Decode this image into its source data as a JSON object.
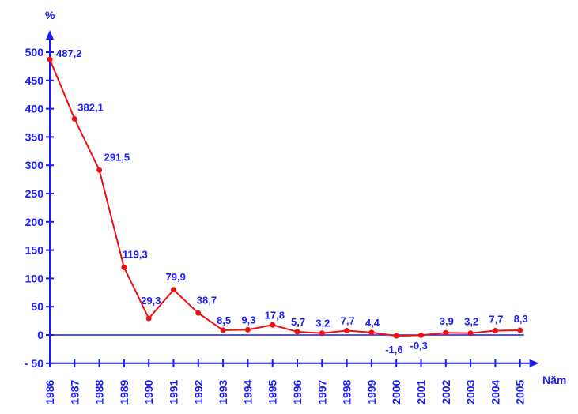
{
  "chart_data": {
    "type": "line",
    "title": "",
    "ylabel": "%",
    "xlabel": "Năm",
    "ylim": [
      -50,
      500
    ],
    "yticks": [
      -50,
      0,
      50,
      100,
      150,
      200,
      250,
      300,
      350,
      400,
      450,
      500
    ],
    "ytick_labels": [
      "- 50",
      "0",
      "50",
      "100",
      "150",
      "200",
      "250",
      "300",
      "350",
      "400",
      "450",
      "500"
    ],
    "categories": [
      "1986",
      "1987",
      "1988",
      "1989",
      "1990",
      "1991",
      "1992",
      "1993",
      "1994",
      "1995",
      "1996",
      "1997",
      "1998",
      "1999",
      "2000",
      "2001",
      "2002",
      "2003",
      "2004",
      "2005"
    ],
    "values": [
      487.2,
      382.1,
      291.5,
      119.3,
      29.3,
      79.9,
      38.7,
      8.5,
      9.3,
      17.8,
      5.7,
      3.2,
      7.7,
      4.4,
      -1.6,
      -0.3,
      3.9,
      3.2,
      7.7,
      8.3
    ],
    "data_labels": [
      "487,2",
      "382,1",
      "291,5",
      "119,3",
      "29,3",
      "79,9",
      "38,7",
      "8,5",
      "9,3",
      "17,8",
      "5,7",
      "3,2",
      "7,7",
      "4,4",
      "-1,6",
      "-0,3",
      "3,9",
      "3,2",
      "7,7",
      "8,3"
    ],
    "colors": {
      "axis": "#1a1aff",
      "line": "#ee1111"
    },
    "grid": false
  }
}
